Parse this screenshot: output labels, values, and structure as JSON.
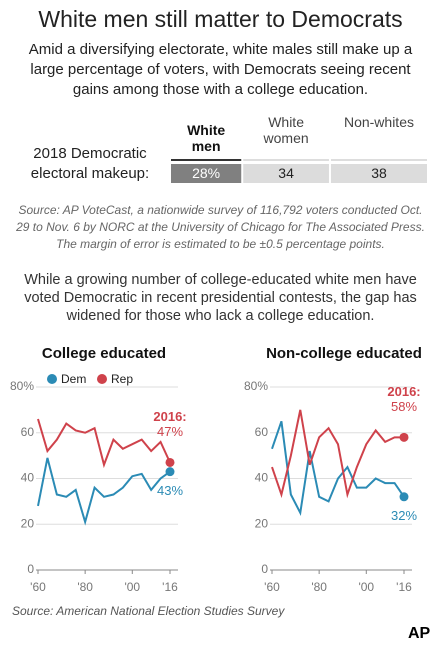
{
  "title": "White men still matter to Democrats",
  "subtitle": "Amid a diversifying electorate, white males still make up a large percentage of voters, with Democrats seeing recent gains among those with a college education.",
  "source_note": "Source: AP VoteCast, a nationwide survey of 116,792 voters conducted Oct. 29 to Nov. 6 by NORC at the University of Chicago for The Associated Press. The margin of error is estimated to be ±0.5 percentage points.",
  "intro": "While a growing number of college-educated white men have voted Democratic in recent presidential contests, the gap has widened for those who lack a college education.",
  "source": "Source: American National Election Studies Survey",
  "logo": "AP",
  "chart_data": [
    {
      "type": "stacked_bar",
      "label": "2018 Democratic electoral makeup:",
      "xlim": [
        0,
        100
      ],
      "series": [
        {
          "name": "White men",
          "color": "#808080",
          "values": [
            28
          ],
          "value_labels": [
            "28%"
          ]
        },
        {
          "name": "White women",
          "color": "#dcdcdc",
          "values": [
            34
          ]
        },
        {
          "name": "Non-whites",
          "color": "#dcdcdc",
          "values": [
            38
          ]
        }
      ]
    },
    {
      "type": "line",
      "title": "College educated",
      "legend": true,
      "annotation": "2016:",
      "x": [
        1960,
        1964,
        1968,
        1972,
        1976,
        1980,
        1984,
        1988,
        1992,
        1996,
        2000,
        2004,
        2008,
        2012,
        2016
      ],
      "xlim": [
        1960,
        2016
      ],
      "xticks": [
        {
          "value": 1960,
          "label": "'60"
        },
        {
          "value": 1980,
          "label": "'80"
        },
        {
          "value": 2000,
          "label": "'00"
        },
        {
          "value": 2016,
          "label": "'16"
        }
      ],
      "ylim": [
        0,
        80
      ],
      "yticks": [
        0,
        20,
        40,
        60,
        {
          "value": 80,
          "label": "80%"
        }
      ],
      "series": [
        {
          "name": "Dem",
          "color": "#2b8bb5",
          "values": [
            28,
            49,
            33,
            32,
            35,
            21,
            36,
            32,
            33,
            36,
            41,
            42,
            35,
            40,
            43
          ],
          "value_labels": [
            null,
            null,
            null,
            null,
            null,
            null,
            null,
            null,
            null,
            null,
            null,
            null,
            null,
            null,
            "43%"
          ]
        },
        {
          "name": "Rep",
          "color": "#cf424b",
          "values": [
            66,
            52,
            57,
            64,
            61,
            60,
            62,
            46,
            57,
            53,
            55,
            57,
            52,
            56,
            47
          ],
          "value_labels": [
            null,
            null,
            null,
            null,
            null,
            null,
            null,
            null,
            null,
            null,
            null,
            null,
            null,
            null,
            "47%"
          ]
        }
      ]
    },
    {
      "type": "line",
      "title": "Non-college educated",
      "legend": false,
      "annotation": "2016:",
      "x": [
        1960,
        1964,
        1968,
        1972,
        1976,
        1980,
        1984,
        1988,
        1992,
        1996,
        2000,
        2004,
        2008,
        2012,
        2016
      ],
      "xlim": [
        1960,
        2016
      ],
      "xticks": [
        {
          "value": 1960,
          "label": "'60"
        },
        {
          "value": 1980,
          "label": "'80"
        },
        {
          "value": 2000,
          "label": "'00"
        },
        {
          "value": 2016,
          "label": "'16"
        }
      ],
      "ylim": [
        0,
        80
      ],
      "yticks": [
        0,
        20,
        40,
        60,
        {
          "value": 80,
          "label": "80%"
        }
      ],
      "series": [
        {
          "name": "Dem",
          "color": "#2b8bb5",
          "values": [
            53,
            65,
            33,
            25,
            52,
            32,
            30,
            40,
            45,
            36,
            36,
            40,
            38,
            38,
            32
          ],
          "value_labels": [
            null,
            null,
            null,
            null,
            null,
            null,
            null,
            null,
            null,
            null,
            null,
            null,
            null,
            null,
            "32%"
          ]
        },
        {
          "name": "Rep",
          "color": "#cf424b",
          "values": [
            45,
            33,
            50,
            70,
            46,
            58,
            62,
            55,
            33,
            45,
            55,
            61,
            56,
            58,
            58
          ],
          "value_labels": [
            null,
            null,
            null,
            null,
            null,
            null,
            null,
            null,
            null,
            null,
            null,
            null,
            null,
            null,
            "58%"
          ]
        }
      ]
    }
  ]
}
